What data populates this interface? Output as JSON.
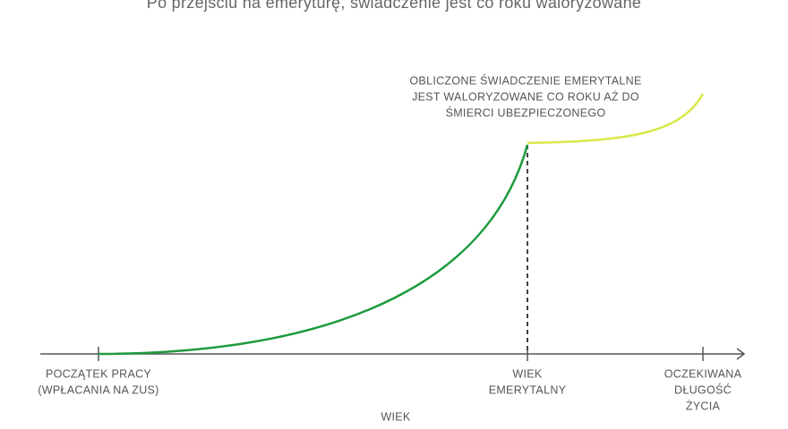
{
  "title": "Po przejściu na emeryturę, świadczenie jest co roku waloryzowane",
  "annotation": {
    "lines": [
      "OBLICZONE ŚWIADCZENIE EMERYTALNE",
      "JEST WALORYZOWANE CO ROKU AŻ DO",
      "ŚMIERCI UBEZPIECZONEGO"
    ]
  },
  "x_axis": {
    "label": "WIEK",
    "ticks": [
      {
        "lines": [
          "POCZĄTEK PRACY",
          "(WPŁACANIA NA ZUS)"
        ]
      },
      {
        "lines": [
          "WIEK",
          "EMERYTALNY"
        ]
      },
      {
        "lines": [
          "OCZEKIWANA",
          "DŁUGOŚĆ",
          "ŻYCIA"
        ]
      }
    ]
  }
}
